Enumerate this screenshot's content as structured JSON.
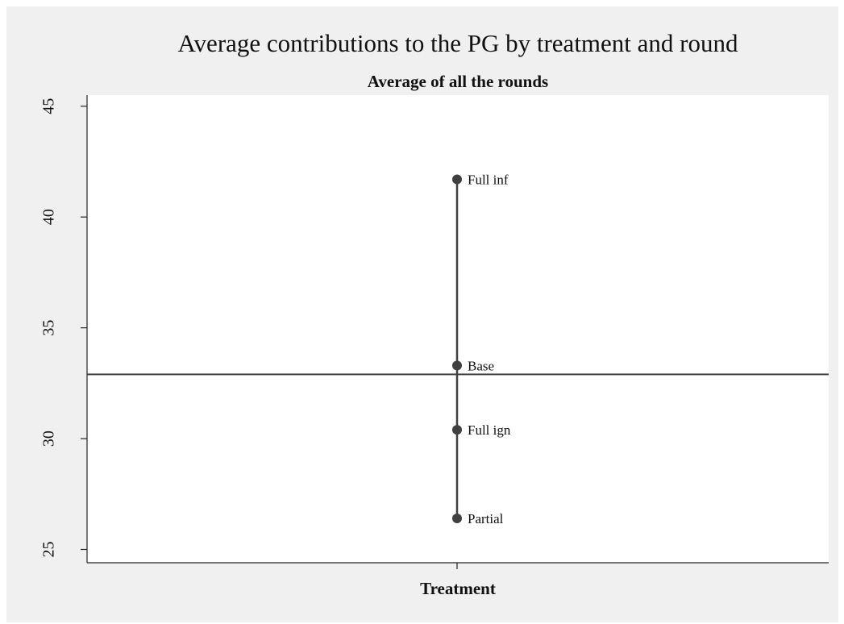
{
  "chart_data": {
    "type": "dot",
    "title": "Average contributions to the PG by treatment and round",
    "subtitle": "Average of all the rounds",
    "x_label": "Treatment",
    "categories": [
      "Full inf",
      "Base",
      "Full ign",
      "Partial"
    ],
    "values": [
      41.7,
      33.3,
      30.4,
      26.4
    ],
    "color": "#404040",
    "reference_line": 32.9,
    "ylim": [
      24.4,
      45.5
    ],
    "yticks": [
      25,
      30,
      35,
      40,
      45
    ],
    "grid": false
  }
}
